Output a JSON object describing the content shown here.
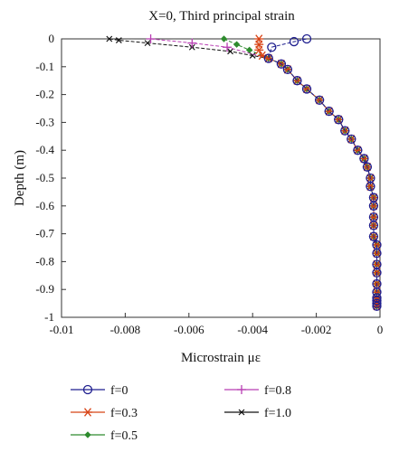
{
  "chart_data": {
    "type": "line",
    "title": "X=0, Third principal strain",
    "xlabel": "Microstrain με",
    "ylabel": "Depth (m)",
    "xlim": [
      -0.01,
      0
    ],
    "ylim": [
      -1,
      0
    ],
    "x_ticks": [
      -0.01,
      -0.008,
      -0.006,
      -0.004,
      -0.002,
      0
    ],
    "x_tick_labels": [
      "-0.01",
      "-0.008",
      "-0.006",
      "-0.004",
      "-0.002",
      "0"
    ],
    "y_ticks": [
      0,
      -0.1,
      -0.2,
      -0.3,
      -0.4,
      -0.5,
      -0.6,
      -0.7,
      -0.8,
      -0.9,
      -1
    ],
    "y_tick_labels": [
      "0",
      "-0.1",
      "-0.2",
      "-0.3",
      "-0.4",
      "-0.5",
      "-0.6",
      "-0.7",
      "-0.8",
      "-0.9",
      "-1"
    ],
    "grid": false,
    "legend_position": "bottom",
    "shared_profile": {
      "x": [
        -0.0035,
        -0.0031,
        -0.0029,
        -0.0026,
        -0.0023,
        -0.0019,
        -0.0016,
        -0.0013,
        -0.0011,
        -0.0009,
        -0.0007,
        -0.0005,
        -0.0004,
        -0.0003,
        -0.0003,
        -0.0002,
        -0.0002,
        -0.0002,
        -0.0002,
        -0.0002,
        -0.0001,
        -0.0001,
        -0.0001,
        -0.0001,
        -0.0001,
        -0.0001,
        -0.0001,
        -0.0001,
        -0.0001,
        -0.0001
      ],
      "y": [
        -0.07,
        -0.09,
        -0.11,
        -0.15,
        -0.18,
        -0.22,
        -0.26,
        -0.29,
        -0.33,
        -0.36,
        -0.4,
        -0.43,
        -0.46,
        -0.5,
        -0.53,
        -0.57,
        -0.6,
        -0.64,
        -0.67,
        -0.71,
        -0.74,
        -0.77,
        -0.81,
        -0.84,
        -0.88,
        -0.91,
        -0.93,
        -0.94,
        -0.95,
        -0.96
      ]
    },
    "series": [
      {
        "name": "f=0",
        "color": "#1f1f8f",
        "marker": "circle",
        "head_x": [
          -0.0023,
          -0.0027,
          -0.0034
        ],
        "head_y": [
          0,
          -0.01,
          -0.03
        ]
      },
      {
        "name": "f=0.3",
        "color": "#d84315",
        "marker": "asterisk",
        "head_x": [
          -0.0038,
          -0.0038,
          -0.0038,
          -0.0037
        ],
        "head_y": [
          0,
          -0.02,
          -0.04,
          -0.06
        ]
      },
      {
        "name": "f=0.5",
        "color": "#2e8b2e",
        "marker": "diamond",
        "head_x": [
          -0.0049,
          -0.0045,
          -0.0041
        ],
        "head_y": [
          0,
          -0.02,
          -0.04
        ]
      },
      {
        "name": "f=0.8",
        "color": "#b83fb3",
        "marker": "plus",
        "head_x": [
          -0.0072,
          -0.0059,
          -0.0048
        ],
        "head_y": [
          0,
          -0.015,
          -0.03
        ]
      },
      {
        "name": "f=1.0",
        "color": "#111111",
        "marker": "x",
        "head_x": [
          -0.0085,
          -0.0082,
          -0.0073,
          -0.0059,
          -0.0047,
          -0.004
        ],
        "head_y": [
          0,
          -0.005,
          -0.015,
          -0.03,
          -0.045,
          -0.06
        ]
      }
    ]
  }
}
